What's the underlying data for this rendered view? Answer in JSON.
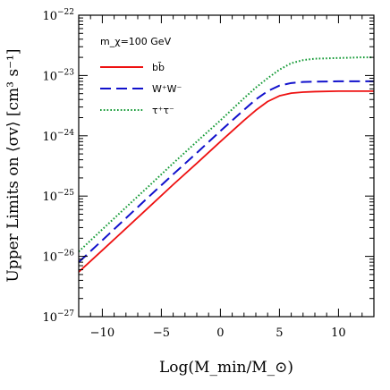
{
  "chart_data": {
    "type": "line",
    "title": "",
    "xlabel": "Log(M_min/M_⊙)",
    "ylabel": "Upper Limits on ⟨σv⟩ [cm³ s⁻¹]",
    "xlim": [
      -12,
      13
    ],
    "ylim": [
      1e-27,
      1e-22
    ],
    "yscale": "log",
    "grid": false,
    "x_ticks": [
      -10,
      -5,
      0,
      5,
      10
    ],
    "x_tick_labels": [
      "−10",
      "−5",
      "0",
      "5",
      "10"
    ],
    "y_ticks": [
      1e-27,
      1e-26,
      1e-25,
      1e-24,
      1e-23,
      1e-22
    ],
    "y_tick_labels": [
      {
        "base": "10",
        "exp": "−27"
      },
      {
        "base": "10",
        "exp": "−26"
      },
      {
        "base": "10",
        "exp": "−25"
      },
      {
        "base": "10",
        "exp": "−24"
      },
      {
        "base": "10",
        "exp": "−23"
      },
      {
        "base": "10",
        "exp": "−22"
      }
    ],
    "legend_header": "m_χ=100 GeV",
    "legend_position": "top-left",
    "x": [
      -12,
      -10,
      -8,
      -6,
      -4,
      -2,
      0,
      2,
      3,
      4,
      5,
      6,
      7,
      8,
      10,
      12,
      13
    ],
    "series": [
      {
        "name": "bb̄",
        "color": "#ee1111",
        "dash": "solid",
        "values": [
          5.5e-27,
          1.26e-26,
          2.9e-26,
          6.7e-26,
          1.55e-25,
          3.5e-25,
          8e-25,
          1.8e-24,
          2.65e-24,
          3.7e-24,
          4.6e-24,
          5.1e-24,
          5.3e-24,
          5.4e-24,
          5.5e-24,
          5.5e-24,
          5.5e-24
        ]
      },
      {
        "name": "W⁺W⁻",
        "color": "#1111cc",
        "dash": "dashed",
        "values": [
          8e-27,
          1.85e-26,
          4.3e-26,
          1e-25,
          2.3e-25,
          5.2e-25,
          1.2e-24,
          2.7e-24,
          4e-24,
          5.5e-24,
          6.8e-24,
          7.5e-24,
          7.8e-24,
          7.9e-24,
          8e-24,
          8e-24,
          8e-24
        ]
      },
      {
        "name": "τ⁺τ⁻",
        "color": "#119933",
        "dash": "dotted",
        "values": [
          1.2e-26,
          2.8e-26,
          6.5e-26,
          1.5e-25,
          3.5e-25,
          8e-25,
          1.8e-24,
          4.2e-24,
          6.3e-24,
          9e-24,
          1.25e-23,
          1.6e-23,
          1.8e-23,
          1.9e-23,
          1.95e-23,
          2e-23,
          2e-23
        ]
      }
    ]
  }
}
